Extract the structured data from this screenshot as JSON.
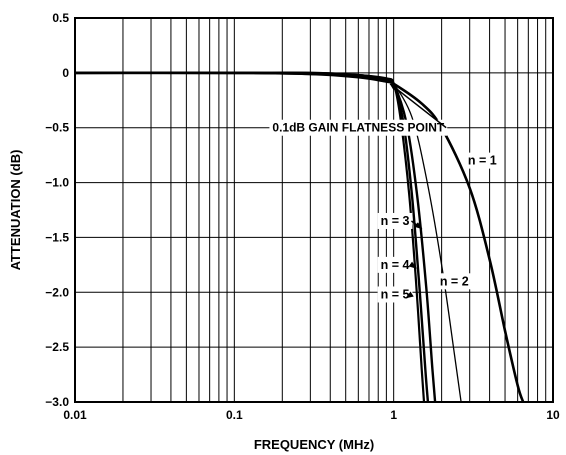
{
  "chart_data": {
    "type": "line",
    "title": "",
    "xlabel": "FREQUENCY (MHz)",
    "ylabel": "ATTENUATION (dB)",
    "x_scale": "log",
    "xlim": [
      0.01,
      10
    ],
    "ylim": [
      -3.0,
      0.5
    ],
    "grid": true,
    "x_ticks": [
      0.01,
      0.1,
      1,
      10
    ],
    "x_tick_labels": [
      "0.01",
      "0.1",
      "1",
      "10"
    ],
    "y_ticks": [
      0.5,
      0,
      -0.5,
      -1.0,
      -1.5,
      -2.0,
      -2.5,
      -3.0
    ],
    "y_tick_labels": [
      "0.5",
      "0",
      "−0.5",
      "−1.0",
      "−1.5",
      "−2.0",
      "−2.5",
      "−3.0"
    ],
    "series": [
      {
        "name": "n = 1",
        "x": [
          0.01,
          0.1,
          0.3,
          0.6,
          0.9,
          1.0,
          1.5,
          2.0,
          3.0,
          4.0,
          5.0,
          6.0,
          6.5
        ],
        "y": [
          0,
          0,
          -0.01,
          -0.04,
          -0.08,
          -0.1,
          -0.28,
          -0.5,
          -1.05,
          -1.7,
          -2.35,
          -2.85,
          -3.0
        ]
      },
      {
        "name": "n = 2",
        "x": [
          0.01,
          0.1,
          0.3,
          0.6,
          0.9,
          1.0,
          1.3,
          1.6,
          2.0,
          2.4,
          2.65
        ],
        "y": [
          0,
          0,
          -0.01,
          -0.03,
          -0.07,
          -0.1,
          -0.4,
          -0.95,
          -1.75,
          -2.55,
          -3.0
        ]
      },
      {
        "name": "n = 3",
        "x": [
          0.01,
          0.1,
          0.3,
          0.6,
          0.9,
          1.0,
          1.2,
          1.4,
          1.6,
          1.75,
          1.82
        ],
        "y": [
          0,
          0,
          -0.01,
          -0.02,
          -0.06,
          -0.1,
          -0.45,
          -1.1,
          -1.95,
          -2.7,
          -3.0
        ]
      },
      {
        "name": "n = 4",
        "x": [
          0.01,
          0.1,
          0.3,
          0.6,
          0.9,
          1.0,
          1.15,
          1.3,
          1.45,
          1.58,
          1.64
        ],
        "y": [
          0,
          0,
          0,
          -0.02,
          -0.06,
          -0.1,
          -0.45,
          -1.1,
          -1.95,
          -2.7,
          -3.0
        ]
      },
      {
        "name": "n = 5",
        "x": [
          0.01,
          0.1,
          0.3,
          0.6,
          0.9,
          1.0,
          1.1,
          1.25,
          1.38,
          1.5,
          1.55
        ],
        "y": [
          0,
          0,
          0,
          -0.02,
          -0.05,
          -0.1,
          -0.4,
          -1.1,
          -1.9,
          -2.7,
          -3.0
        ]
      }
    ],
    "annotations": [
      {
        "text": "0.1dB GAIN FLATNESS POINT",
        "x": 0.6,
        "y": -0.5,
        "target_x": 0.95,
        "target_y": -0.1
      },
      {
        "text": "n = 1",
        "x": 3.6,
        "y": -0.8
      },
      {
        "text": "n = 2",
        "x": 2.4,
        "y": -1.9
      },
      {
        "text": "n = 3",
        "x": 1.02,
        "y": -1.35,
        "target_x": 1.5,
        "target_y": -1.42
      },
      {
        "text": "n = 4",
        "x": 1.02,
        "y": -1.75,
        "target_x": 1.38,
        "target_y": -1.78
      },
      {
        "text": "n = 5",
        "x": 1.02,
        "y": -2.02,
        "target_x": 1.2,
        "target_y": -2.05
      }
    ]
  }
}
